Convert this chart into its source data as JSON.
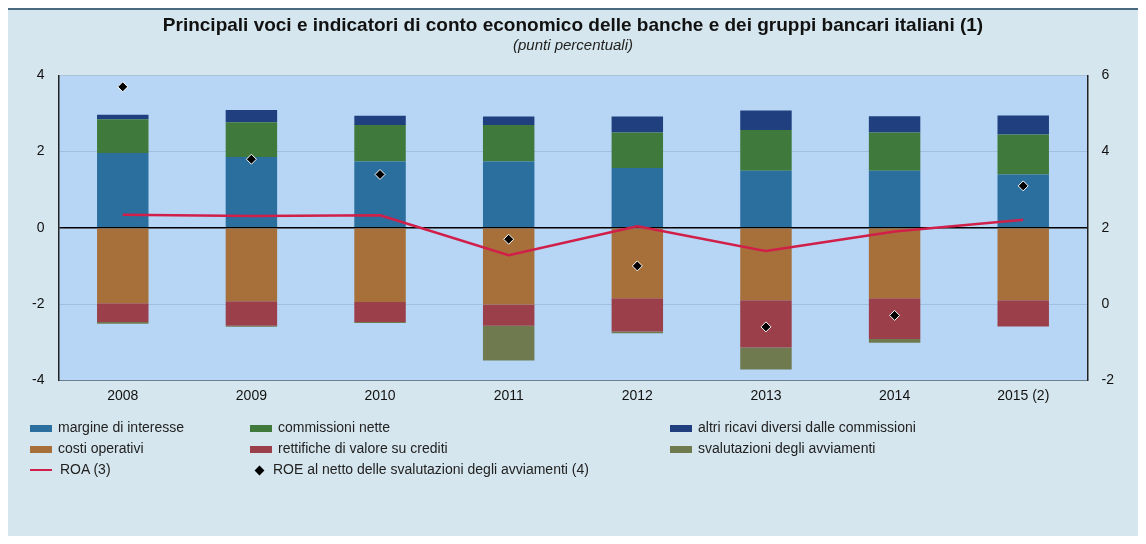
{
  "chart_data": {
    "type": "bar",
    "title": "Principali voci e indicatori di conto economico delle banche e dei gruppi bancari italiani (1)",
    "subtitle": "(punti percentuali)",
    "categories": [
      "2008",
      "2009",
      "2010",
      "2011",
      "2012",
      "2013",
      "2014",
      "2015 (2)"
    ],
    "stacked": true,
    "series": [
      {
        "name": "margine di interesse",
        "color": "#2a6f9e",
        "values": [
          1.96,
          1.86,
          1.74,
          1.74,
          1.57,
          1.5,
          1.5,
          1.4
        ]
      },
      {
        "name": "commissioni nette",
        "color": "#3f7a3c",
        "values": [
          0.89,
          0.91,
          0.96,
          0.96,
          0.93,
          1.07,
          1.0,
          1.05
        ]
      },
      {
        "name": "altri ricavi diversi dalle commissioni",
        "color": "#1f3f7f",
        "values": [
          0.12,
          0.32,
          0.24,
          0.22,
          0.42,
          0.51,
          0.43,
          0.5
        ]
      },
      {
        "name": "costi operativi",
        "color": "#a7703a",
        "values": [
          -1.98,
          -1.93,
          -1.95,
          -2.01,
          -1.85,
          -1.9,
          -1.85,
          -1.9
        ]
      },
      {
        "name": "rettifiche di valore su crediti",
        "color": "#9b3f4a",
        "values": [
          -0.49,
          -0.64,
          -0.52,
          -0.56,
          -0.87,
          -1.24,
          -1.07,
          -0.69
        ]
      },
      {
        "name": "svalutazioni degli avviamenti",
        "color": "#6f7a4f",
        "values": [
          -0.05,
          -0.03,
          -0.03,
          -0.91,
          -0.05,
          -0.58,
          -0.1,
          null
        ]
      },
      {
        "name": "ROA (3)",
        "type": "line",
        "color": "#d0204a",
        "marker": "none",
        "values": [
          0.34,
          0.31,
          0.33,
          -0.72,
          0.04,
          -0.61,
          -0.1,
          0.21
        ]
      },
      {
        "name": "ROE al netto delle svalutazioni degli avviamenti (4)",
        "type": "scatter",
        "axis": "y2",
        "marker": "diamond",
        "color": "#000000",
        "values": [
          5.7,
          3.8,
          3.4,
          1.7,
          1.0,
          -0.6,
          -0.3,
          3.1
        ]
      }
    ],
    "ylim": [
      -4,
      4
    ],
    "yticks": [
      -4,
      -2,
      0,
      2,
      4
    ],
    "y2lim": [
      -2,
      6
    ],
    "y2ticks": [
      -2,
      0,
      2,
      4,
      6
    ],
    "grid": "y",
    "legend": "bottom"
  }
}
